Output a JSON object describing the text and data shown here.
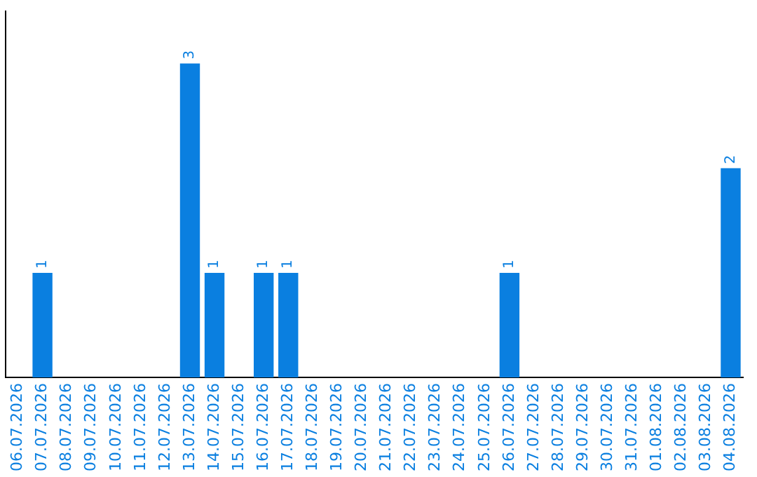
{
  "chart_data": {
    "type": "bar",
    "categories": [
      "06.07.2026",
      "07.07.2026",
      "08.07.2026",
      "09.07.2026",
      "10.07.2026",
      "11.07.2026",
      "12.07.2026",
      "13.07.2026",
      "14.07.2026",
      "15.07.2026",
      "16.07.2026",
      "17.07.2026",
      "18.07.2026",
      "19.07.2026",
      "20.07.2026",
      "21.07.2026",
      "22.07.2026",
      "23.07.2026",
      "24.07.2026",
      "25.07.2026",
      "26.07.2026",
      "27.07.2026",
      "28.07.2026",
      "29.07.2026",
      "30.07.2026",
      "31.07.2026",
      "01.08.2026",
      "02.08.2026",
      "03.08.2026",
      "04.08.2026"
    ],
    "values": [
      0,
      1,
      0,
      0,
      0,
      0,
      0,
      3,
      1,
      0,
      1,
      1,
      0,
      0,
      0,
      0,
      0,
      0,
      0,
      0,
      1,
      0,
      0,
      0,
      0,
      0,
      0,
      0,
      0,
      2
    ],
    "value_labels": [
      null,
      "1",
      null,
      null,
      null,
      null,
      null,
      "3",
      "1",
      null,
      "1",
      "1",
      null,
      null,
      null,
      null,
      null,
      null,
      null,
      null,
      "1",
      null,
      null,
      null,
      null,
      null,
      null,
      null,
      null,
      "2"
    ],
    "color": "#0a7fe0",
    "grid": false,
    "legend": false,
    "tick_labels": "x"
  }
}
